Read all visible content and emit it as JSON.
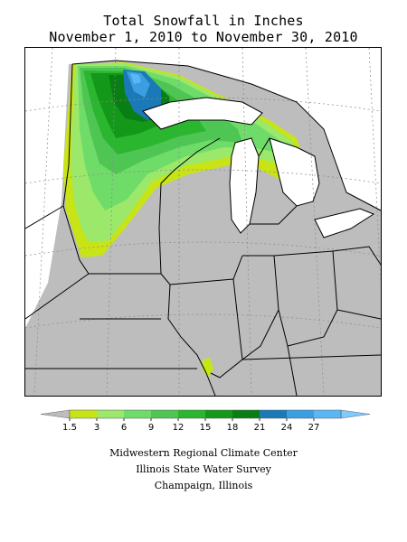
{
  "title": {
    "line1": "Total Snowfall in Inches",
    "line2": "November 1, 2010 to November 30, 2010"
  },
  "legend": {
    "unit": "Inches",
    "bins": [
      {
        "value": "1.5",
        "color": "#c8e416"
      },
      {
        "value": "3",
        "color": "#9be86a"
      },
      {
        "value": "6",
        "color": "#6fdc6a"
      },
      {
        "value": "9",
        "color": "#4fc653"
      },
      {
        "value": "12",
        "color": "#2bb62f"
      },
      {
        "value": "15",
        "color": "#14981a"
      },
      {
        "value": "18",
        "color": "#097e15"
      },
      {
        "value": "21",
        "color": "#1c79b8"
      },
      {
        "value": "24",
        "color": "#3b9ee0"
      },
      {
        "value": "27",
        "color": "#5bb6f4"
      }
    ],
    "below_color": "#bdbdbd",
    "above_color": "#7fcaff"
  },
  "map": {
    "background_color": "#bdbdbd",
    "no_data_color": "#ffffff"
  },
  "credits": {
    "line1": "Midwestern Regional Climate Center",
    "line2": "Illinois State Water Survey",
    "line3": "Champaign, Illinois"
  }
}
